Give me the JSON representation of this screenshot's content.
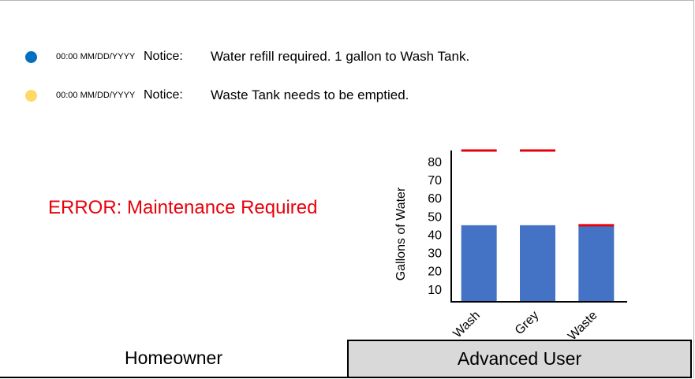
{
  "notices": [
    {
      "dot_color": "#0070c0",
      "time": "00:00 MM/DD/YYYY",
      "kind": "Notice:",
      "message": "Water refill required. 1 gallon to Wash Tank."
    },
    {
      "dot_color": "#ffd966",
      "time": "00:00 MM/DD/YYYY",
      "kind": "Notice:",
      "message": "Waste Tank needs to be emptied."
    }
  ],
  "error": {
    "text": "ERROR: Maintenance Required",
    "color": "#e8000b"
  },
  "chart_data": {
    "type": "bar",
    "categories": [
      "Wash",
      "Grey",
      "Waste"
    ],
    "values": [
      45,
      45,
      45
    ],
    "thresholds": [
      86,
      86,
      45
    ],
    "ylabel": "Gallons of Water",
    "ylim": [
      3,
      86
    ],
    "yticks": [
      10,
      20,
      30,
      40,
      50,
      60,
      70,
      80
    ],
    "bar_color": "#4472c4",
    "threshold_color": "#e8000b",
    "grid": false
  },
  "tabs": [
    {
      "label": "Homeowner"
    },
    {
      "label": "Advanced User"
    }
  ]
}
